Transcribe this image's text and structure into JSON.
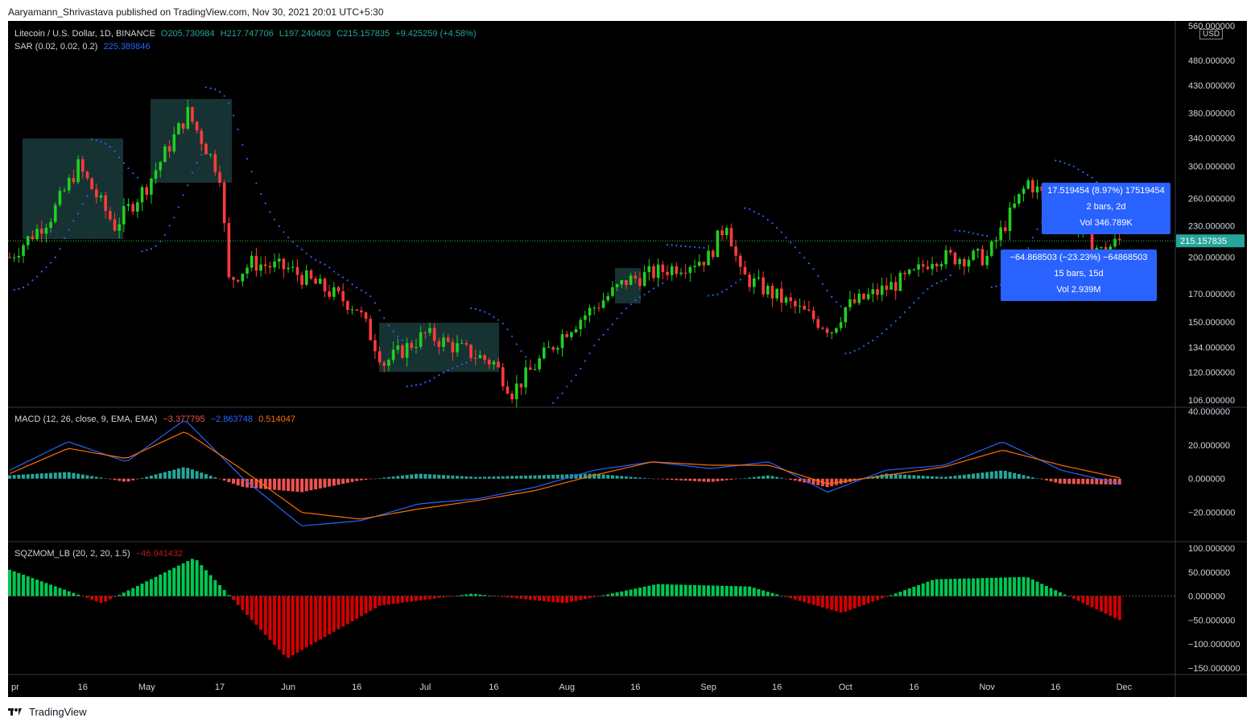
{
  "header": {
    "published": "Aaryamann_Shrivastava published on TradingView.com, Nov 30, 2021 20:01 UTC+5:30"
  },
  "footer": {
    "brand": "TradingView"
  },
  "colors": {
    "bull": "#26a69a",
    "bear": "#ef5350",
    "bull_candle": "#20d020",
    "bear_candle": "#ff3b3b",
    "sar": "#2962ff",
    "macd": "#2962ff",
    "signal": "#ff6d00",
    "sqz_pos": "#00c853",
    "sqz_neg": "#d50000",
    "measure_box": "#2962ff",
    "zone_box": "#1b3b3b",
    "price_line": "#2ecc40"
  },
  "main_legend": {
    "symbol": "Litecoin / U.S. Dollar, 1D, BINANCE",
    "o": "O205.730984",
    "h": "H217.747706",
    "l": "L197.240403",
    "c": "C215.157835",
    "chg": "+9.425259 (+4.58%)",
    "sar_label": "SAR (0.02, 0.02, 0.2)",
    "sar_value": "225.389846"
  },
  "macd_legend": {
    "label": "MACD (12, 26, close, 9, EMA, EMA)",
    "hist": "−3.377795",
    "macd": "−2.863748",
    "signal": "0.514047"
  },
  "sqz_legend": {
    "label": "SQZMOM_LB (20, 2, 20, 1.5)",
    "value": "−46.941432"
  },
  "price_axis": {
    "currency": "USD",
    "last_price": "215.157835",
    "ticks": [
      "560.000000",
      "480.000000",
      "430.000000",
      "380.000000",
      "340.000000",
      "300.000000",
      "260.000000",
      "230.000000",
      "200.000000",
      "170.000000",
      "150.000000",
      "134.000000",
      "120.000000",
      "106.000000"
    ]
  },
  "macd_axis": {
    "ticks": [
      "40.000000",
      "20.000000",
      "0.000000",
      "−20.000000"
    ]
  },
  "sqz_axis": {
    "ticks": [
      "100.000000",
      "50.000000",
      "0.000000",
      "−50.000000",
      "−100.000000",
      "−150.000000"
    ]
  },
  "time_axis": {
    "labels": [
      "pr",
      "16",
      "May",
      "17",
      "Jun",
      "16",
      "Jul",
      "16",
      "Aug",
      "16",
      "Sep",
      "16",
      "Oct",
      "16",
      "Nov",
      "16",
      "Dec"
    ]
  },
  "measure_up": {
    "line1": "17.519454 (8.97%) 17519454",
    "line2": "2 bars, 2d",
    "line3": "Vol 346.789K"
  },
  "measure_down": {
    "line1": "−64.868503 (−23.23%) −64868503",
    "line2": "15 bars, 15d",
    "line3": "Vol 2.939M"
  },
  "chart_data": [
    {
      "type": "candlestick",
      "title": "Litecoin / U.S. Dollar, 1D, BINANCE",
      "scale": "log",
      "x_range": [
        "Apr 2021",
        "Dec 2021"
      ],
      "ylim": [
        106,
        560
      ],
      "approx_close_path": [
        {
          "date": "Apr 1",
          "close": 200
        },
        {
          "date": "Apr 10",
          "close": 240
        },
        {
          "date": "Apr 16",
          "close": 300
        },
        {
          "date": "Apr 24",
          "close": 230
        },
        {
          "date": "May 1",
          "close": 275
        },
        {
          "date": "May 10",
          "close": 380
        },
        {
          "date": "May 17",
          "close": 290
        },
        {
          "date": "May 19",
          "close": 180
        },
        {
          "date": "May 24",
          "close": 195
        },
        {
          "date": "Jun 1",
          "close": 190
        },
        {
          "date": "Jun 16",
          "close": 160
        },
        {
          "date": "Jun 22",
          "close": 125
        },
        {
          "date": "Jul 1",
          "close": 142
        },
        {
          "date": "Jul 16",
          "close": 125
        },
        {
          "date": "Jul 20",
          "close": 110
        },
        {
          "date": "Aug 1",
          "close": 145
        },
        {
          "date": "Aug 14",
          "close": 180
        },
        {
          "date": "Sep 1",
          "close": 200
        },
        {
          "date": "Sep 5",
          "close": 235
        },
        {
          "date": "Sep 8",
          "close": 185
        },
        {
          "date": "Sep 20",
          "close": 160
        },
        {
          "date": "Sep 28",
          "close": 145
        },
        {
          "date": "Oct 1",
          "close": 160
        },
        {
          "date": "Oct 16",
          "close": 185
        },
        {
          "date": "Oct 20",
          "close": 200
        },
        {
          "date": "Nov 1",
          "close": 200
        },
        {
          "date": "Nov 10",
          "close": 280
        },
        {
          "date": "Nov 16",
          "close": 250
        },
        {
          "date": "Nov 26",
          "close": 205
        },
        {
          "date": "Nov 30",
          "close": 215.157835
        }
      ]
    },
    {
      "type": "line",
      "title": "MACD (12, 26, close, 9, EMA, EMA)",
      "ylim": [
        -35,
        40
      ],
      "series": [
        {
          "name": "MACD",
          "values": [
            5,
            22,
            10,
            35,
            0,
            -28,
            -25,
            -15,
            -12,
            -5,
            5,
            10,
            6,
            10,
            -8,
            5,
            8,
            22,
            5,
            -3
          ]
        },
        {
          "name": "Signal",
          "values": [
            3,
            18,
            12,
            28,
            5,
            -20,
            -24,
            -18,
            -13,
            -7,
            2,
            10,
            8,
            8,
            -3,
            2,
            7,
            17,
            8,
            0.5
          ]
        }
      ]
    },
    {
      "type": "bar",
      "title": "SQZMOM_LB (20, 2, 20, 1.5)",
      "ylim": [
        -150,
        100
      ],
      "values": [
        55,
        -15,
        80,
        -130,
        -20,
        5,
        -15,
        25,
        20,
        -35,
        35,
        40,
        -50
      ]
    }
  ]
}
